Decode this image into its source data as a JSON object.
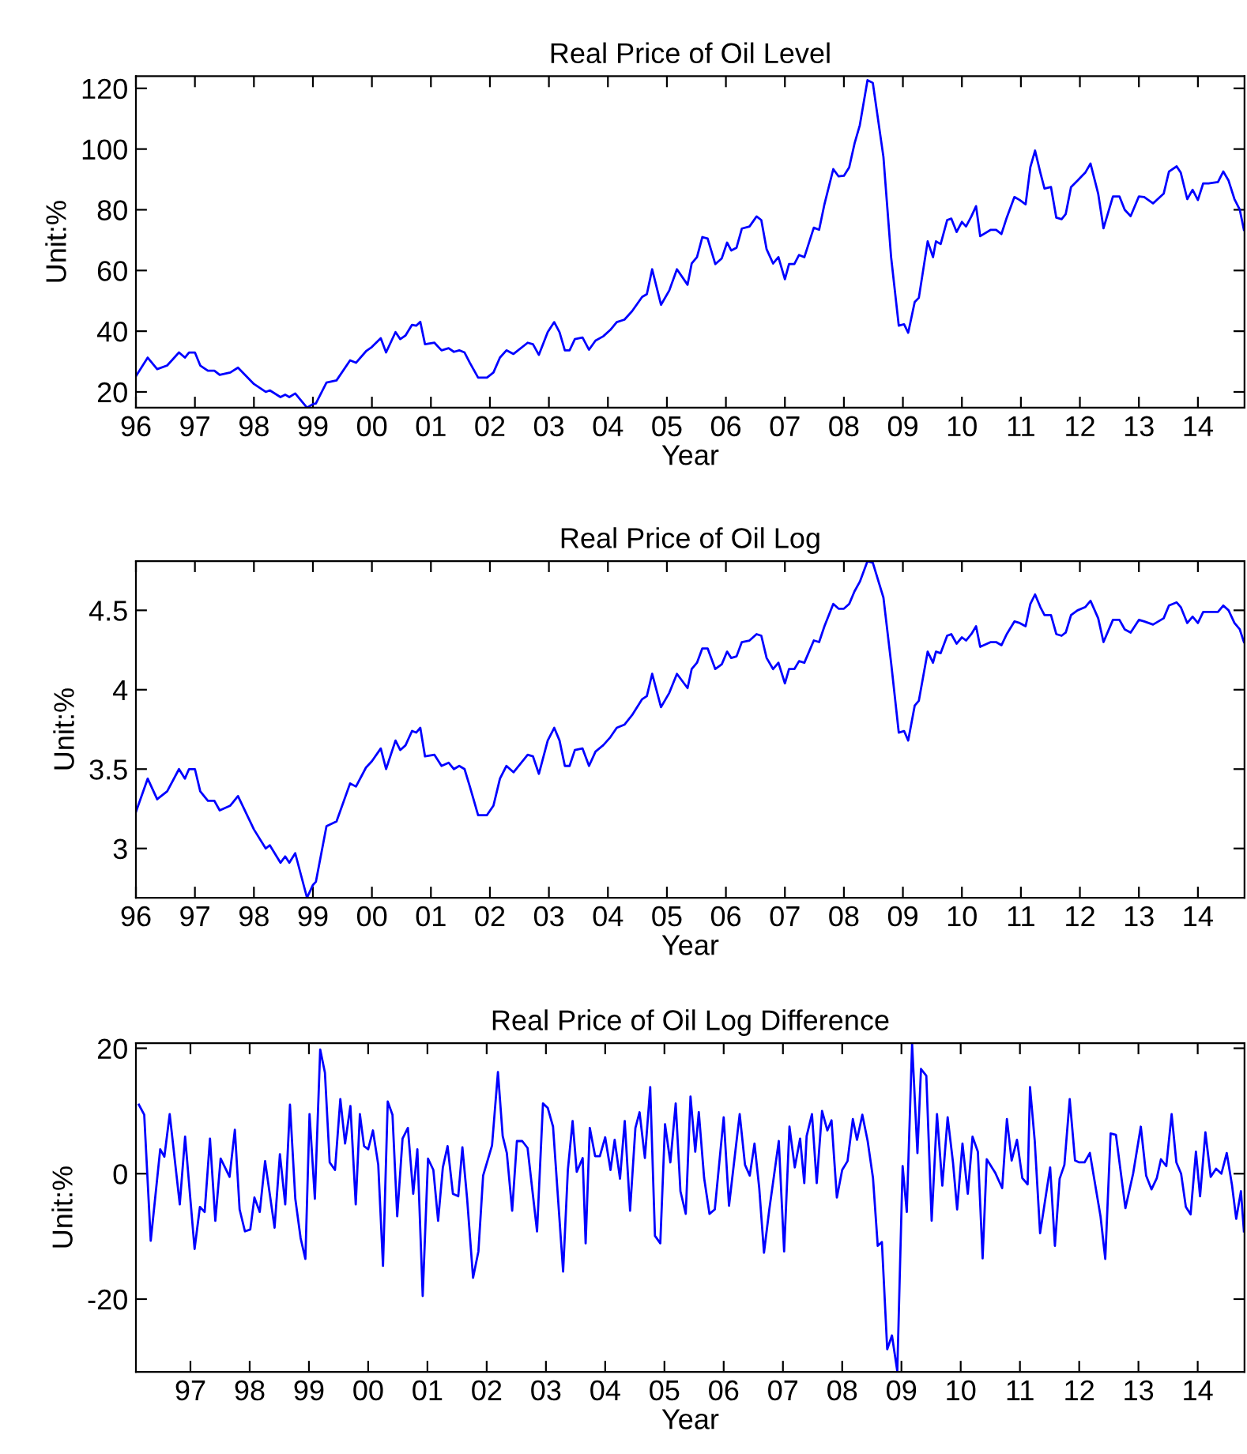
{
  "chart_data": [
    {
      "type": "line",
      "title": "Real Price of Oil Level",
      "xlabel": "Year",
      "ylabel": "Unit:%",
      "xlim": [
        1996,
        2014.79
      ],
      "ylim": [
        14.8,
        124
      ],
      "xticks": [
        {
          "value": 1996,
          "label": "96"
        },
        {
          "value": 1997,
          "label": "97"
        },
        {
          "value": 1998,
          "label": "98"
        },
        {
          "value": 1999,
          "label": "99"
        },
        {
          "value": 2000,
          "label": "00"
        },
        {
          "value": 2001,
          "label": "01"
        },
        {
          "value": 2002,
          "label": "02"
        },
        {
          "value": 2003,
          "label": "03"
        },
        {
          "value": 2004,
          "label": "04"
        },
        {
          "value": 2005,
          "label": "05"
        },
        {
          "value": 2006,
          "label": "06"
        },
        {
          "value": 2007,
          "label": "07"
        },
        {
          "value": 2008,
          "label": "08"
        },
        {
          "value": 2009,
          "label": "09"
        },
        {
          "value": 2010,
          "label": "10"
        },
        {
          "value": 2011,
          "label": "11"
        },
        {
          "value": 2012,
          "label": "12"
        },
        {
          "value": 2013,
          "label": "13"
        },
        {
          "value": 2014,
          "label": "14"
        }
      ],
      "yticks": [
        20,
        40,
        60,
        80,
        100,
        120
      ],
      "series": [
        {
          "color": "#0000ff",
          "x": [
            1996.0,
            1996.2,
            1996.36,
            1996.53,
            1996.73,
            1996.83,
            1996.9,
            1997.0,
            1997.09,
            1997.22,
            1997.33,
            1997.42,
            1997.6,
            1997.73,
            1998.0,
            1998.2,
            1998.27,
            1998.45,
            1998.53,
            1998.6,
            1998.7,
            1998.9,
            1999.0,
            1999.05,
            1999.23,
            1999.4,
            1999.63,
            1999.73,
            1999.9,
            2000.0,
            2000.15,
            2000.24,
            2000.4,
            2000.48,
            2000.57,
            2000.68,
            2000.75,
            2000.82,
            2000.9,
            2001.06,
            2001.18,
            2001.3,
            2001.39,
            2001.48,
            2001.57,
            2001.66,
            2001.8,
            2001.95,
            2002.06,
            2002.17,
            2002.28,
            2002.4,
            2002.64,
            2002.73,
            2002.83,
            2002.98,
            2003.09,
            2003.18,
            2003.27,
            2003.35,
            2003.44,
            2003.57,
            2003.68,
            2003.79,
            2003.92,
            2004.04,
            2004.15,
            2004.28,
            2004.41,
            2004.58,
            2004.66,
            2004.75,
            2004.9,
            2005.04,
            2005.17,
            2005.35,
            2005.42,
            2005.51,
            2005.6,
            2005.69,
            2005.82,
            2005.93,
            2006.02,
            2006.09,
            2006.18,
            2006.27,
            2006.4,
            2006.52,
            2006.6,
            2006.69,
            2006.8,
            2006.89,
            2007.0,
            2007.07,
            2007.16,
            2007.24,
            2007.33,
            2007.49,
            2007.58,
            2007.67,
            2007.82,
            2007.91,
            2008.0,
            2008.09,
            2008.18,
            2008.27,
            2008.4,
            2008.49,
            2008.67,
            2008.8,
            2008.93,
            2009.02,
            2009.09,
            2009.2,
            2009.27,
            2009.42,
            2009.51,
            2009.56,
            2009.64,
            2009.75,
            2009.82,
            2009.91,
            2010.0,
            2010.07,
            2010.16,
            2010.24,
            2010.31,
            2010.49,
            2010.58,
            2010.67,
            2010.76,
            2010.89,
            2010.98,
            2011.08,
            2011.16,
            2011.24,
            2011.33,
            2011.4,
            2011.51,
            2011.6,
            2011.69,
            2011.76,
            2011.85,
            2011.96,
            2012.09,
            2012.18,
            2012.31,
            2012.4,
            2012.56,
            2012.67,
            2012.76,
            2012.86,
            2013.0,
            2013.09,
            2013.24,
            2013.42,
            2013.51,
            2013.64,
            2013.71,
            2013.82,
            2013.91,
            2014.0,
            2014.09,
            2014.18,
            2014.34,
            2014.43,
            2014.52,
            2014.62,
            2014.71,
            2014.78
          ],
          "values": [
            25.2,
            31.3,
            27.5,
            28.7,
            33,
            31.3,
            33,
            33,
            28.7,
            27,
            27,
            25.6,
            26.4,
            28,
            22.6,
            20,
            20.5,
            18.3,
            19.1,
            18.3,
            19.5,
            14.8,
            16,
            16.2,
            23.1,
            23.8,
            30.4,
            29.6,
            33.4,
            34.8,
            37.7,
            33,
            39.7,
            37.4,
            38.6,
            42.1,
            41.8,
            43.1,
            35.7,
            36.2,
            33.7,
            34.4,
            33.2,
            33.7,
            33,
            29.6,
            24.7,
            24.7,
            26.4,
            31.3,
            33.7,
            32.5,
            36.2,
            35.7,
            32.2,
            39.7,
            43,
            39.7,
            33.7,
            33.7,
            37.4,
            37.9,
            33.9,
            36.9,
            38.3,
            40.4,
            43,
            43.8,
            46.6,
            51.3,
            52.2,
            60.4,
            48.7,
            53.4,
            60.4,
            55.3,
            62.3,
            64.4,
            71,
            70.5,
            62.1,
            64,
            69.2,
            66.6,
            67.5,
            73.8,
            74.5,
            77.8,
            76.6,
            67,
            62.3,
            64.4,
            57.1,
            62.1,
            62.1,
            65.1,
            64.4,
            74.1,
            73.4,
            81.8,
            93.4,
            91,
            91.2,
            94,
            101.8,
            107.9,
            122.7,
            121.8,
            97.4,
            64.4,
            41.8,
            42.3,
            39.5,
            49.6,
            51,
            69.6,
            64.4,
            69.6,
            68.7,
            76.6,
            77.1,
            72.7,
            76,
            74.5,
            77.8,
            81.2,
            71.3,
            73.4,
            73.4,
            72,
            77.4,
            84.2,
            83.2,
            81.8,
            94,
            99.5,
            92.2,
            87,
            87.5,
            77.4,
            76.9,
            78.6,
            87.5,
            89.6,
            92.2,
            95.2,
            85.3,
            73.9,
            84.4,
            84.4,
            80,
            77.9,
            84.4,
            84.2,
            82.1,
            85.3,
            92.6,
            94.3,
            92.2,
            83.5,
            86.6,
            83.2,
            88.7,
            88.7,
            89.1,
            92.6,
            89.6,
            83.5,
            80,
            73.4
          ]
        }
      ]
    },
    {
      "type": "line",
      "title": "Real Price of Oil Log",
      "xlabel": "Year",
      "ylabel": "Unit:%",
      "xlim": [
        1996,
        2014.79
      ],
      "ylim": [
        2.69,
        4.81
      ],
      "xticks": [
        {
          "value": 1996,
          "label": "96"
        },
        {
          "value": 1997,
          "label": "97"
        },
        {
          "value": 1998,
          "label": "98"
        },
        {
          "value": 1999,
          "label": "99"
        },
        {
          "value": 2000,
          "label": "00"
        },
        {
          "value": 2001,
          "label": "01"
        },
        {
          "value": 2002,
          "label": "02"
        },
        {
          "value": 2003,
          "label": "03"
        },
        {
          "value": 2004,
          "label": "04"
        },
        {
          "value": 2005,
          "label": "05"
        },
        {
          "value": 2006,
          "label": "06"
        },
        {
          "value": 2007,
          "label": "07"
        },
        {
          "value": 2008,
          "label": "08"
        },
        {
          "value": 2009,
          "label": "09"
        },
        {
          "value": 2010,
          "label": "10"
        },
        {
          "value": 2011,
          "label": "11"
        },
        {
          "value": 2012,
          "label": "12"
        },
        {
          "value": 2013,
          "label": "13"
        },
        {
          "value": 2014,
          "label": "14"
        }
      ],
      "yticks": [
        3,
        3.5,
        4,
        4.5
      ],
      "series": [
        {
          "color": "#0000ff",
          "x": [
            1996.0,
            1996.2,
            1996.36,
            1996.53,
            1996.73,
            1996.83,
            1996.9,
            1997.0,
            1997.09,
            1997.22,
            1997.33,
            1997.42,
            1997.6,
            1997.73,
            1998.0,
            1998.2,
            1998.27,
            1998.45,
            1998.53,
            1998.6,
            1998.7,
            1998.9,
            1999.0,
            1999.05,
            1999.23,
            1999.4,
            1999.63,
            1999.73,
            1999.9,
            2000.0,
            2000.15,
            2000.24,
            2000.4,
            2000.48,
            2000.57,
            2000.68,
            2000.75,
            2000.82,
            2000.9,
            2001.06,
            2001.18,
            2001.3,
            2001.39,
            2001.48,
            2001.57,
            2001.66,
            2001.8,
            2001.95,
            2002.06,
            2002.17,
            2002.28,
            2002.4,
            2002.64,
            2002.73,
            2002.83,
            2002.98,
            2003.09,
            2003.18,
            2003.27,
            2003.35,
            2003.44,
            2003.57,
            2003.68,
            2003.79,
            2003.92,
            2004.04,
            2004.15,
            2004.28,
            2004.41,
            2004.58,
            2004.66,
            2004.75,
            2004.9,
            2005.04,
            2005.17,
            2005.35,
            2005.42,
            2005.51,
            2005.6,
            2005.69,
            2005.82,
            2005.93,
            2006.02,
            2006.09,
            2006.18,
            2006.27,
            2006.4,
            2006.52,
            2006.6,
            2006.69,
            2006.8,
            2006.89,
            2007.0,
            2007.07,
            2007.16,
            2007.24,
            2007.33,
            2007.49,
            2007.58,
            2007.67,
            2007.82,
            2007.91,
            2008.0,
            2008.09,
            2008.18,
            2008.27,
            2008.4,
            2008.49,
            2008.67,
            2008.8,
            2008.93,
            2009.02,
            2009.09,
            2009.2,
            2009.27,
            2009.42,
            2009.51,
            2009.56,
            2009.64,
            2009.75,
            2009.82,
            2009.91,
            2010.0,
            2010.07,
            2010.16,
            2010.24,
            2010.31,
            2010.49,
            2010.58,
            2010.67,
            2010.76,
            2010.89,
            2010.98,
            2011.08,
            2011.16,
            2011.24,
            2011.33,
            2011.4,
            2011.51,
            2011.6,
            2011.69,
            2011.76,
            2011.85,
            2011.96,
            2012.09,
            2012.18,
            2012.31,
            2012.4,
            2012.56,
            2012.67,
            2012.76,
            2012.86,
            2013.0,
            2013.09,
            2013.24,
            2013.42,
            2013.51,
            2013.64,
            2013.71,
            2013.82,
            2013.91,
            2014.0,
            2014.09,
            2014.18,
            2014.34,
            2014.43,
            2014.52,
            2014.62,
            2014.71,
            2014.78
          ],
          "values": [
            3.23,
            3.44,
            3.31,
            3.36,
            3.5,
            3.44,
            3.5,
            3.5,
            3.36,
            3.3,
            3.3,
            3.24,
            3.27,
            3.33,
            3.12,
            3.0,
            3.02,
            2.91,
            2.95,
            2.91,
            2.97,
            2.69,
            2.77,
            2.79,
            3.14,
            3.17,
            3.41,
            3.39,
            3.51,
            3.55,
            3.63,
            3.5,
            3.68,
            3.62,
            3.65,
            3.74,
            3.73,
            3.76,
            3.58,
            3.59,
            3.52,
            3.54,
            3.5,
            3.52,
            3.5,
            3.39,
            3.21,
            3.21,
            3.27,
            3.44,
            3.52,
            3.48,
            3.59,
            3.58,
            3.47,
            3.68,
            3.76,
            3.68,
            3.52,
            3.52,
            3.62,
            3.63,
            3.52,
            3.61,
            3.65,
            3.7,
            3.76,
            3.78,
            3.84,
            3.94,
            3.96,
            4.1,
            3.89,
            3.98,
            4.1,
            4.01,
            4.13,
            4.17,
            4.26,
            4.26,
            4.13,
            4.16,
            4.24,
            4.2,
            4.21,
            4.3,
            4.31,
            4.35,
            4.34,
            4.2,
            4.13,
            4.17,
            4.04,
            4.13,
            4.13,
            4.18,
            4.17,
            4.31,
            4.3,
            4.4,
            4.54,
            4.51,
            4.51,
            4.54,
            4.62,
            4.68,
            4.81,
            4.8,
            4.58,
            4.17,
            3.73,
            3.74,
            3.68,
            3.9,
            3.93,
            4.24,
            4.17,
            4.24,
            4.23,
            4.34,
            4.35,
            4.29,
            4.33,
            4.31,
            4.35,
            4.4,
            4.27,
            4.3,
            4.3,
            4.28,
            4.35,
            4.43,
            4.42,
            4.4,
            4.54,
            4.6,
            4.52,
            4.47,
            4.47,
            4.35,
            4.34,
            4.36,
            4.47,
            4.5,
            4.52,
            4.56,
            4.45,
            4.3,
            4.44,
            4.44,
            4.38,
            4.36,
            4.44,
            4.43,
            4.41,
            4.45,
            4.53,
            4.55,
            4.52,
            4.42,
            4.46,
            4.42,
            4.49,
            4.49,
            4.49,
            4.53,
            4.5,
            4.42,
            4.38,
            4.3
          ]
        }
      ]
    },
    {
      "type": "line",
      "title": "Real Price of Oil Log Difference",
      "xlabel": "Year",
      "ylabel": "Unit:%",
      "xlim": [
        1996.08,
        2014.79
      ],
      "ylim": [
        -31.6,
        20.8
      ],
      "xticks": [
        {
          "value": 1997,
          "label": "97"
        },
        {
          "value": 1998,
          "label": "98"
        },
        {
          "value": 1999,
          "label": "99"
        },
        {
          "value": 2000,
          "label": "00"
        },
        {
          "value": 2001,
          "label": "01"
        },
        {
          "value": 2002,
          "label": "02"
        },
        {
          "value": 2003,
          "label": "03"
        },
        {
          "value": 2004,
          "label": "04"
        },
        {
          "value": 2005,
          "label": "05"
        },
        {
          "value": 2006,
          "label": "06"
        },
        {
          "value": 2007,
          "label": "07"
        },
        {
          "value": 2008,
          "label": "08"
        },
        {
          "value": 2009,
          "label": "09"
        },
        {
          "value": 2010,
          "label": "10"
        },
        {
          "value": 2011,
          "label": "11"
        },
        {
          "value": 2012,
          "label": "12"
        },
        {
          "value": 2013,
          "label": "13"
        },
        {
          "value": 2014,
          "label": "14"
        }
      ],
      "yticks": [
        -20,
        0,
        20
      ],
      "series": [
        {
          "color": "#0000ff",
          "x": [
            1996.13,
            1996.22,
            1996.33,
            1996.49,
            1996.56,
            1996.65,
            1996.82,
            1996.91,
            1997.07,
            1997.16,
            1997.24,
            1997.33,
            1997.42,
            1997.51,
            1997.66,
            1997.75,
            1997.83,
            1997.92,
            1998.01,
            1998.08,
            1998.17,
            1998.26,
            1998.42,
            1998.51,
            1998.6,
            1998.68,
            1998.77,
            1998.86,
            1998.94,
            1999.01,
            1999.1,
            1999.19,
            1999.27,
            1999.35,
            1999.44,
            1999.53,
            1999.61,
            1999.7,
            1999.79,
            1999.86,
            1999.93,
            2000.0,
            2000.08,
            2000.17,
            2000.25,
            2000.33,
            2000.41,
            2000.49,
            2000.58,
            2000.67,
            2000.76,
            2000.83,
            2000.92,
            2001.01,
            2001.1,
            2001.18,
            2001.26,
            2001.34,
            2001.43,
            2001.52,
            2001.59,
            2001.67,
            2001.77,
            2001.86,
            2001.94,
            2002.09,
            2002.19,
            2002.27,
            2002.34,
            2002.43,
            2002.51,
            2002.6,
            2002.69,
            2002.85,
            2002.95,
            2003.03,
            2003.12,
            2003.29,
            2003.37,
            2003.45,
            2003.52,
            2003.62,
            2003.67,
            2003.74,
            2003.83,
            2003.91,
            2004.0,
            2004.09,
            2004.16,
            2004.25,
            2004.33,
            2004.42,
            2004.51,
            2004.58,
            2004.67,
            2004.76,
            2004.84,
            2004.93,
            2005.01,
            2005.1,
            2005.19,
            2005.27,
            2005.36,
            2005.44,
            2005.52,
            2005.58,
            2005.67,
            2005.76,
            2005.85,
            2006.0,
            2006.09,
            2006.27,
            2006.36,
            2006.44,
            2006.52,
            2006.6,
            2006.68,
            2006.77,
            2006.93,
            2007.02,
            2007.11,
            2007.2,
            2007.29,
            2007.36,
            2007.4,
            2007.49,
            2007.57,
            2007.66,
            2007.75,
            2007.82,
            2007.91,
            2008.0,
            2008.09,
            2008.18,
            2008.25,
            2008.34,
            2008.43,
            2008.52,
            2008.6,
            2008.67,
            2008.76,
            2008.84,
            2008.93,
            2009.02,
            2009.09,
            2009.18,
            2009.27,
            2009.33,
            2009.42,
            2009.51,
            2009.6,
            2009.69,
            2009.78,
            2009.87,
            2009.94,
            2010.03,
            2010.12,
            2010.2,
            2010.29,
            2010.37,
            2010.44,
            2010.58,
            2010.7,
            2010.78,
            2010.86,
            2010.95,
            2011.04,
            2011.13,
            2011.17,
            2011.25,
            2011.34,
            2011.51,
            2011.59,
            2011.67,
            2011.75,
            2011.84,
            2011.93,
            2012.0,
            2012.09,
            2012.18,
            2012.36,
            2012.44,
            2012.53,
            2012.62,
            2012.78,
            2012.91,
            2013.04,
            2013.13,
            2013.22,
            2013.31,
            2013.38,
            2013.47,
            2013.56,
            2013.64,
            2013.72,
            2013.8,
            2013.88,
            2013.97,
            2014.04,
            2014.13,
            2014.22,
            2014.31,
            2014.4,
            2014.49,
            2014.58,
            2014.65,
            2014.73,
            2014.78
          ],
          "values": [
            11.0,
            9.4,
            -10.7,
            3.9,
            2.7,
            9.5,
            -4.9,
            5.9,
            -12.0,
            -5.3,
            -6.1,
            5.6,
            -7.5,
            2.4,
            -0.5,
            7.0,
            -5.7,
            -9.2,
            -8.9,
            -3.8,
            -6.1,
            2.0,
            -8.6,
            3.1,
            -4.9,
            11.0,
            -4.0,
            -10.3,
            -13.6,
            9.5,
            -4.0,
            19.8,
            16.1,
            1.8,
            0.6,
            11.9,
            4.8,
            10.8,
            -4.9,
            9.5,
            4.4,
            3.9,
            6.9,
            1.4,
            -14.7,
            11.5,
            9.4,
            -6.8,
            5.6,
            7.3,
            -3.2,
            3.9,
            -19.5,
            2.4,
            0.6,
            -7.5,
            1.0,
            4.4,
            -3.2,
            -3.6,
            4.2,
            -4.0,
            -16.6,
            -12.4,
            -0.3,
            4.5,
            16.2,
            6.0,
            3.3,
            -5.9,
            5.2,
            5.2,
            4.1,
            -9.2,
            11.2,
            10.5,
            7.5,
            -15.6,
            0.6,
            8.4,
            0.3,
            2.5,
            -11.1,
            7.3,
            2.8,
            2.8,
            5.8,
            0.6,
            5.4,
            -0.8,
            8.4,
            -5.9,
            7.3,
            9.8,
            2.5,
            13.8,
            -9.9,
            -11.1,
            7.9,
            1.8,
            11.2,
            -2.8,
            -6.4,
            12.3,
            3.5,
            9.8,
            -0.7,
            -6.4,
            -5.7,
            9.0,
            -5.1,
            9.5,
            1.4,
            -0.3,
            4.8,
            -2.3,
            -12.6,
            -5.7,
            5.2,
            -12.4,
            7.5,
            1.0,
            5.6,
            -1.5,
            6.0,
            9.5,
            -1.5,
            10.0,
            6.9,
            8.5,
            -3.8,
            0.6,
            2.0,
            8.7,
            5.4,
            9.4,
            5.2,
            -0.7,
            -11.5,
            -10.9,
            -28.0,
            -25.8,
            -31.5,
            1.2,
            -6.1,
            20.7,
            3.3,
            16.7,
            15.6,
            -7.5,
            9.5,
            -1.9,
            9.0,
            1.8,
            -5.7,
            4.8,
            -3.2,
            5.9,
            3.5,
            -13.5,
            2.3,
            0.2,
            -2.3,
            8.7,
            2.1,
            5.4,
            -0.7,
            -1.7,
            13.8,
            5.2,
            -9.5,
            1.0,
            -11.5,
            -0.8,
            1.4,
            11.9,
            2.1,
            1.8,
            1.8,
            3.3,
            -6.8,
            -13.6,
            6.4,
            6.2,
            -5.5,
            0.0,
            7.5,
            -0.3,
            -2.5,
            -0.7,
            2.3,
            1.2,
            9.5,
            1.8,
            0.0,
            -5.3,
            -6.5,
            3.5,
            -3.6,
            6.6,
            -0.5,
            0.8,
            0.0,
            3.3,
            -1.9,
            -7.2,
            -2.8,
            -9.2
          ]
        }
      ]
    }
  ]
}
